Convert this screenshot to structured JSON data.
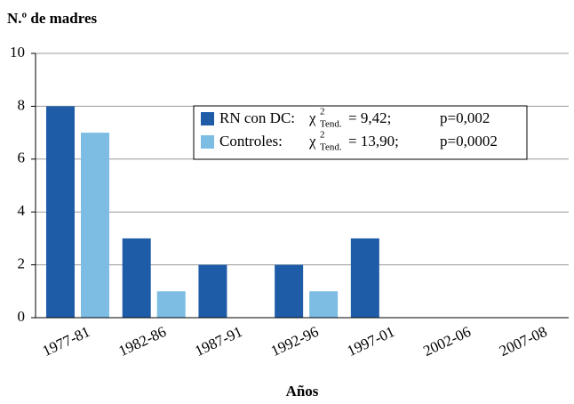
{
  "chart_data": {
    "type": "bar",
    "title": "N.º de madres",
    "x_label": "Años",
    "categories": [
      "1977-81",
      "1982-86",
      "1987-91",
      "1992-96",
      "1997-01",
      "2002-06",
      "2007-08"
    ],
    "series": [
      {
        "name": "RN con DC:",
        "color": "#1f5ca8",
        "values": [
          8,
          3,
          2,
          2,
          3,
          0,
          0
        ]
      },
      {
        "name": "Controles:",
        "color": "#7dbde4",
        "values": [
          7,
          1,
          0,
          1,
          0,
          0,
          0
        ]
      }
    ],
    "legend_stats": [
      {
        "symbol": "χ",
        "sup": "2",
        "sub": "Tend.",
        "stat": "= 9,42;",
        "p": "p=0,002"
      },
      {
        "symbol": "χ",
        "sup": "2",
        "sub": "Tend.",
        "stat": "= 13,90;",
        "p": "p=0,0002"
      }
    ],
    "ylim": [
      0,
      10
    ],
    "yticks": [
      0,
      2,
      4,
      6,
      8,
      10
    ],
    "grid": true
  }
}
